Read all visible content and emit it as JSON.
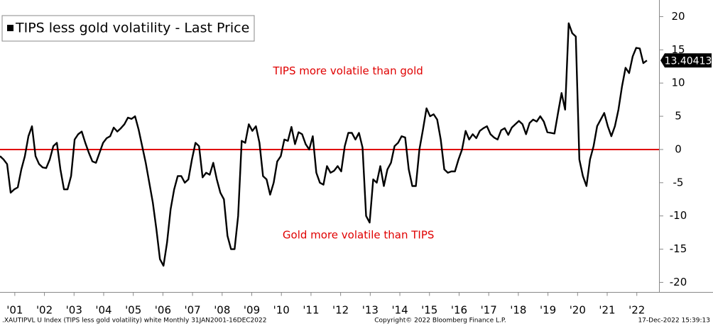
{
  "chart_data": {
    "type": "line",
    "series": [
      {
        "name": "TIPS less gold volatility - Last Price",
        "color": "#000000",
        "values": [
          -1,
          -1.5,
          -2.2,
          -6.5,
          -6,
          -5.7,
          -3,
          -1,
          2,
          3.5,
          -1,
          -2.2,
          -2.7,
          -2.8,
          -1.5,
          0.5,
          1,
          -3,
          -6,
          -6,
          -4,
          1.5,
          2.3,
          2.7,
          1,
          -0.5,
          -1.8,
          -2,
          -0.5,
          1,
          1.7,
          2,
          3.3,
          2.7,
          3.2,
          3.8,
          4.8,
          4.6,
          5,
          3,
          0.5,
          -2,
          -5,
          -8,
          -12,
          -16.5,
          -17.5,
          -14,
          -9,
          -6,
          -4,
          -4,
          -5,
          -4.5,
          -1.5,
          1,
          0.5,
          -4.2,
          -3.5,
          -3.8,
          -2,
          -4.5,
          -6.5,
          -7.5,
          -13,
          -15,
          -15,
          -10,
          1.3,
          1,
          3.8,
          2.8,
          3.5,
          1,
          -4,
          -4.5,
          -6.8,
          -5,
          -1.8,
          -1,
          1.5,
          1.3,
          3.4,
          0.8,
          2.6,
          2.3,
          0.8,
          0,
          2,
          -3.5,
          -5,
          -5.3,
          -2.5,
          -3.5,
          -3.2,
          -2.5,
          -3.3,
          0.5,
          2.5,
          2.5,
          1.5,
          2.5,
          0.3,
          -10,
          -11,
          -4.5,
          -5,
          -2.5,
          -5.5,
          -3,
          -2,
          0.5,
          1,
          2,
          1.8,
          -3,
          -5.5,
          -5.5,
          0,
          3,
          6.2,
          5,
          5.3,
          4.5,
          1.5,
          -3,
          -3.5,
          -3.3,
          -3.3,
          -1.5,
          0,
          2.8,
          1.5,
          2.3,
          1.7,
          2.8,
          3.2,
          3.5,
          2.3,
          1.8,
          1.5,
          2.9,
          3.2,
          2.2,
          3.3,
          3.8,
          4.3,
          3.8,
          2.3,
          4,
          4.5,
          4.2,
          5,
          4.2,
          2.6,
          2.5,
          2.4,
          5.5,
          8.5,
          6,
          19,
          17.5,
          17,
          -1.5,
          -4,
          -5.5,
          -1.5,
          0.5,
          3.5,
          4.5,
          5.5,
          3.5,
          2,
          3.5,
          6,
          9.5,
          12.3,
          11.5,
          14,
          15.3,
          15.2,
          13,
          13.40413
        ]
      }
    ],
    "x": [
      2001,
      2001.12,
      2001.24,
      2001.36,
      2001.48,
      2001.6,
      2001.72,
      2001.84,
      2001.96,
      2002.08,
      2002.2,
      2002.32,
      2002.44,
      2002.56,
      2002.68,
      2002.8,
      2002.92,
      2003.04,
      2003.16,
      2003.28,
      2003.4,
      2003.52,
      2003.64,
      2003.76,
      2003.88,
      2004,
      2004.12,
      2004.24,
      2004.36,
      2004.48,
      2004.6,
      2004.72,
      2004.84,
      2004.96,
      2005.08,
      2005.2,
      2005.32,
      2005.44,
      2005.56,
      2005.68,
      2005.8,
      2005.92,
      2006.04,
      2006.16,
      2006.28,
      2006.4,
      2006.52,
      2006.64,
      2006.76,
      2006.88,
      2007,
      2007.12,
      2007.24,
      2007.36,
      2007.48,
      2007.6,
      2007.72,
      2007.84,
      2007.96,
      2008.08,
      2008.2,
      2008.32,
      2008.44,
      2008.56,
      2008.68,
      2008.8,
      2008.92,
      2009.04,
      2009.16,
      2009.28,
      2009.4,
      2009.52,
      2009.64,
      2009.76,
      2009.88,
      2010,
      2010.12,
      2010.24,
      2010.36,
      2010.48,
      2010.6,
      2010.72,
      2010.84,
      2010.96,
      2011.08,
      2011.2,
      2011.32,
      2011.44,
      2011.56,
      2011.68,
      2011.8,
      2011.92,
      2012.04,
      2012.16,
      2012.28,
      2012.4,
      2012.52,
      2012.64,
      2012.76,
      2012.88,
      2013,
      2013.12,
      2013.24,
      2013.36,
      2013.48,
      2013.6,
      2013.72,
      2013.84,
      2013.96,
      2014.08,
      2014.2,
      2014.32,
      2014.44,
      2014.56,
      2014.68,
      2014.8,
      2014.92,
      2015.04,
      2015.16,
      2015.28,
      2015.4,
      2015.52,
      2015.64,
      2015.76,
      2015.88,
      2016,
      2016.12,
      2016.24,
      2016.36,
      2016.48,
      2016.6,
      2016.72,
      2016.84,
      2016.96,
      2017.08,
      2017.2,
      2017.32,
      2017.44,
      2017.56,
      2017.68,
      2017.8,
      2017.92,
      2018.04,
      2018.16,
      2018.28,
      2018.4,
      2018.52,
      2018.64,
      2018.76,
      2018.88,
      2019,
      2019.12,
      2019.24,
      2019.36,
      2019.48,
      2019.6,
      2019.72,
      2019.84,
      2019.96,
      2020.08,
      2020.2,
      2020.32,
      2020.44,
      2020.56,
      2020.68,
      2020.8,
      2020.92,
      2021.04,
      2021.16,
      2021.28,
      2021.4,
      2021.52,
      2021.64,
      2021.76,
      2021.88,
      2022,
      2022.12,
      2022.24,
      2022.36,
      2022.48,
      2022.6,
      2022.72,
      2022.84
    ],
    "xlim": [
      2001,
      2023.25
    ],
    "xticks": [
      {
        "value": 2001.5,
        "label": "'01"
      },
      {
        "value": 2002.5,
        "label": "'02"
      },
      {
        "value": 2003.5,
        "label": "'03"
      },
      {
        "value": 2004.5,
        "label": "'04"
      },
      {
        "value": 2005.5,
        "label": "'05"
      },
      {
        "value": 2006.5,
        "label": "'06"
      },
      {
        "value": 2007.5,
        "label": "'07"
      },
      {
        "value": 2008.5,
        "label": "'08"
      },
      {
        "value": 2009.5,
        "label": "'09"
      },
      {
        "value": 2010.5,
        "label": "'10"
      },
      {
        "value": 2011.5,
        "label": "'11"
      },
      {
        "value": 2012.5,
        "label": "'12"
      },
      {
        "value": 2013.5,
        "label": "'13"
      },
      {
        "value": 2014.5,
        "label": "'14"
      },
      {
        "value": 2015.5,
        "label": "'15"
      },
      {
        "value": 2016.5,
        "label": "'16"
      },
      {
        "value": 2017.5,
        "label": "'17"
      },
      {
        "value": 2018.5,
        "label": "'18"
      },
      {
        "value": 2019.5,
        "label": "'19"
      },
      {
        "value": 2020.5,
        "label": "'20"
      },
      {
        "value": 2021.5,
        "label": "'21"
      },
      {
        "value": 2022.5,
        "label": "'22"
      }
    ],
    "ylim": [
      -21.5,
      22.5
    ],
    "yticks": [
      20,
      15,
      10,
      5,
      0,
      -5,
      -10,
      -15,
      -20
    ],
    "hline": {
      "value": 0,
      "color": "#e00000"
    },
    "annotations": [
      {
        "text": "TIPS more volatile than gold",
        "x": 2012.75,
        "y": 11.8,
        "color": "#e00000"
      },
      {
        "text": "Gold more volatile than TIPS",
        "x": 2013.1,
        "y": -12.9,
        "color": "#e00000"
      }
    ],
    "footer": {
      "left": ".XAUTIPVL U Index (TIPS less gold volatility) white  Monthly 31JAN2001-16DEC2022",
      "center": "Copyright© 2022 Bloomberg Finance L.P.",
      "right": "17-Dec-2022 15:39:13"
    }
  }
}
